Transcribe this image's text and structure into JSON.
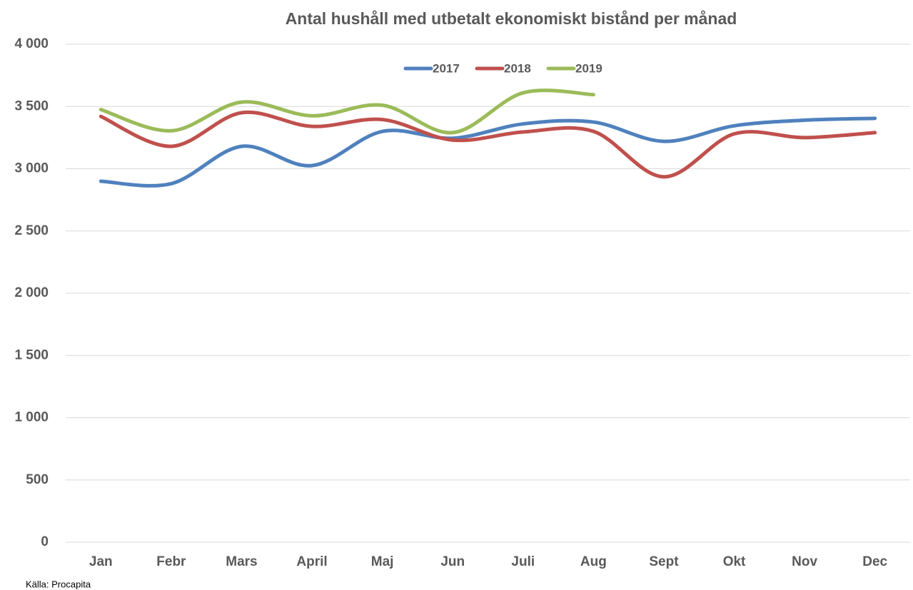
{
  "chart_data": {
    "type": "line",
    "title": "Antal hushåll med utbetalt ekonomiskt bistånd per månad",
    "source": "Källa: Procapita",
    "categories": [
      "Jan",
      "Febr",
      "Mars",
      "April",
      "Maj",
      "Jun",
      "Juli",
      "Aug",
      "Sept",
      "Okt",
      "Nov",
      "Dec"
    ],
    "series": [
      {
        "name": "2017",
        "color": "#4f81bd",
        "values": [
          2900,
          2880,
          3180,
          3025,
          3300,
          3245,
          3360,
          3375,
          3220,
          3345,
          3390,
          3405
        ]
      },
      {
        "name": "2018",
        "color": "#c0504d",
        "values": [
          3420,
          3180,
          3450,
          3340,
          3395,
          3230,
          3295,
          3300,
          2935,
          3280,
          3250,
          3290
        ]
      },
      {
        "name": "2019",
        "color": "#9bbb59",
        "values": [
          3475,
          3305,
          3535,
          3425,
          3510,
          3290,
          3610,
          3595,
          null,
          null,
          null,
          null
        ]
      }
    ],
    "ylim": [
      0,
      4000
    ],
    "yticks": [
      0,
      500,
      {
        "value": 1000,
        "label": "1 000"
      },
      {
        "value": 1500,
        "label": "1 500"
      },
      {
        "value": 2000,
        "label": "2 000"
      },
      {
        "value": 2500,
        "label": "2 500"
      },
      {
        "value": 3000,
        "label": "3 000"
      },
      {
        "value": 3500,
        "label": "3 500"
      },
      {
        "value": 4000,
        "label": "4 000"
      }
    ],
    "grid": true,
    "smooth": true,
    "legend": "top"
  }
}
